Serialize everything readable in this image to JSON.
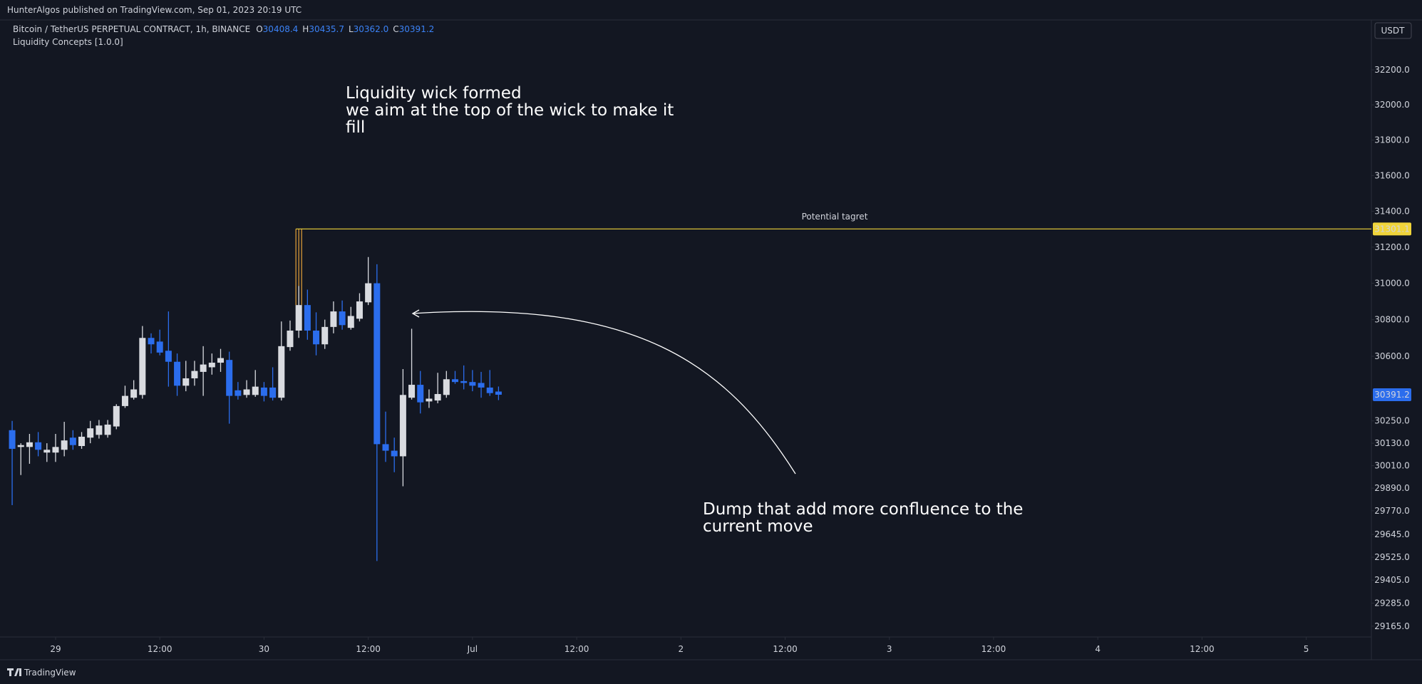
{
  "header": {
    "publisher": "HunterAlgos published on TradingView.com, Sep 01, 2023 20:19 UTC",
    "footer": "TradingView"
  },
  "chart_data": {
    "type": "candlestick",
    "symbol": "Bitcoin / TetherUS PERPETUAL CONTRACT, 1h, BINANCE",
    "ohlc_legend": {
      "letters": [
        "O",
        "H",
        "L",
        "C"
      ],
      "values": [
        "30408.4",
        "30435.7",
        "30362.0",
        "30391.2"
      ]
    },
    "indicator": "Liquidity Concepts [1.0.0]",
    "currency": "USDT",
    "log_scale": true,
    "grid": false,
    "up_color": "#d9dbe0",
    "down_color": "#2b6ded",
    "x": [
      -5,
      -4,
      -3,
      -2,
      -1,
      0,
      1,
      2,
      3,
      4,
      5,
      6,
      7,
      8,
      9,
      10,
      11,
      12,
      13,
      14,
      15,
      16,
      17,
      18,
      19,
      20,
      21,
      22,
      23,
      24,
      25,
      26,
      27,
      28,
      29,
      30,
      31,
      32,
      33,
      34,
      35,
      36,
      37,
      38,
      39,
      40,
      41,
      42,
      43,
      44,
      45,
      46,
      47,
      48,
      49,
      50,
      51
    ],
    "open": [
      30200,
      30110,
      30110,
      30135,
      30080,
      30080,
      30095,
      30160,
      30115,
      30160,
      30175,
      30175,
      30220,
      30330,
      30375,
      30390,
      30700,
      30680,
      30630,
      30570,
      30440,
      30480,
      30515,
      30540,
      30565,
      30580,
      30415,
      30390,
      30390,
      30430,
      30430,
      30375,
      30650,
      30740,
      30880,
      30740,
      30665,
      30760,
      30845,
      30755,
      30805,
      30895,
      31000,
      30125,
      30090,
      30060,
      30375,
      30445,
      30355,
      30360,
      30390,
      30475,
      30465,
      30460,
      30455,
      30430,
      30408.4
    ],
    "high": [
      30250,
      30130,
      30180,
      30190,
      30130,
      30180,
      30245,
      30200,
      30190,
      30250,
      30255,
      30255,
      30340,
      30440,
      30470,
      30765,
      30725,
      30745,
      30845,
      30615,
      30575,
      30575,
      30655,
      30615,
      30640,
      30625,
      30460,
      30470,
      30525,
      30460,
      30540,
      30790,
      30795,
      30985,
      30965,
      30840,
      30800,
      30900,
      30905,
      30870,
      30945,
      31145,
      31105,
      30300,
      30160,
      30530,
      30750,
      30520,
      30420,
      30510,
      30520,
      30520,
      30550,
      30525,
      30515,
      30525,
      30435.7
    ],
    "low": [
      29800,
      29960,
      30020,
      30060,
      30030,
      30030,
      30060,
      30095,
      30100,
      30130,
      30155,
      30160,
      30205,
      30320,
      30365,
      30370,
      30615,
      30605,
      30435,
      30385,
      30410,
      30440,
      30385,
      30500,
      30515,
      30235,
      30365,
      30375,
      30380,
      30355,
      30360,
      30360,
      30630,
      30700,
      30690,
      30605,
      30640,
      30725,
      30745,
      30745,
      30790,
      30880,
      29505,
      30030,
      29975,
      29900,
      30365,
      30290,
      30320,
      30345,
      30375,
      30450,
      30420,
      30410,
      30375,
      30385,
      30362
    ],
    "close": [
      30100,
      30120,
      30135,
      30095,
      30095,
      30110,
      30145,
      30120,
      30165,
      30210,
      30225,
      30230,
      30330,
      30385,
      30420,
      30700,
      30665,
      30620,
      30570,
      30440,
      30480,
      30520,
      30555,
      30565,
      30590,
      30385,
      30385,
      30420,
      30435,
      30385,
      30375,
      30655,
      30740,
      30880,
      30740,
      30665,
      30760,
      30845,
      30770,
      30820,
      30900,
      31000,
      30125,
      30090,
      30060,
      30390,
      30445,
      30350,
      30370,
      30395,
      30475,
      30460,
      30455,
      30440,
      30430,
      30400,
      30391.2
    ],
    "xlim": [
      -6.4,
      151.5
    ],
    "xticks": [
      {
        "value": 0,
        "label": "29"
      },
      {
        "value": 12,
        "label": "12:00"
      },
      {
        "value": 24,
        "label": "30"
      },
      {
        "value": 36,
        "label": "12:00"
      },
      {
        "value": 48,
        "label": "Jul"
      },
      {
        "value": 60,
        "label": "12:00"
      },
      {
        "value": 72,
        "label": "2"
      },
      {
        "value": 84,
        "label": "12:00"
      },
      {
        "value": 96,
        "label": "3"
      },
      {
        "value": 108,
        "label": "12:00"
      },
      {
        "value": 120,
        "label": "4"
      },
      {
        "value": 132,
        "label": "12:00"
      },
      {
        "value": 144,
        "label": "5"
      }
    ],
    "ylim": [
      29109,
      32487
    ],
    "yticks": [
      {
        "value": 32200,
        "label": "32200.0"
      },
      {
        "value": 32000,
        "label": "32000.0"
      },
      {
        "value": 31800,
        "label": "31800.0"
      },
      {
        "value": 31600,
        "label": "31600.0"
      },
      {
        "value": 31400,
        "label": "31400.0"
      },
      {
        "value": 31200,
        "label": "31200.0"
      },
      {
        "value": 31000,
        "label": "31000.0"
      },
      {
        "value": 30800,
        "label": "30800.0"
      },
      {
        "value": 30600,
        "label": "30600.0"
      },
      {
        "value": 30250,
        "label": "30250.0"
      },
      {
        "value": 30130,
        "label": "30130.0"
      },
      {
        "value": 30010,
        "label": "30010.0"
      },
      {
        "value": 29890,
        "label": "29890.0"
      },
      {
        "value": 29770,
        "label": "29770.0"
      },
      {
        "value": 29645,
        "label": "29645.0"
      },
      {
        "value": 29525,
        "label": "29525.0"
      },
      {
        "value": 29405,
        "label": "29405.0"
      },
      {
        "value": 29285,
        "label": "29285.0"
      },
      {
        "value": 29165,
        "label": "29165.0"
      }
    ],
    "target": {
      "value": 31301.1,
      "label": "Potential tagret",
      "color": "#f0d43a"
    },
    "annotations": [
      {
        "lines": [
          "Liquidity wick formed",
          "we aim at the top of the wick to make it",
          "fill"
        ]
      },
      {
        "lines": [
          "Dump that add more confluence to the",
          "current move"
        ]
      }
    ]
  }
}
